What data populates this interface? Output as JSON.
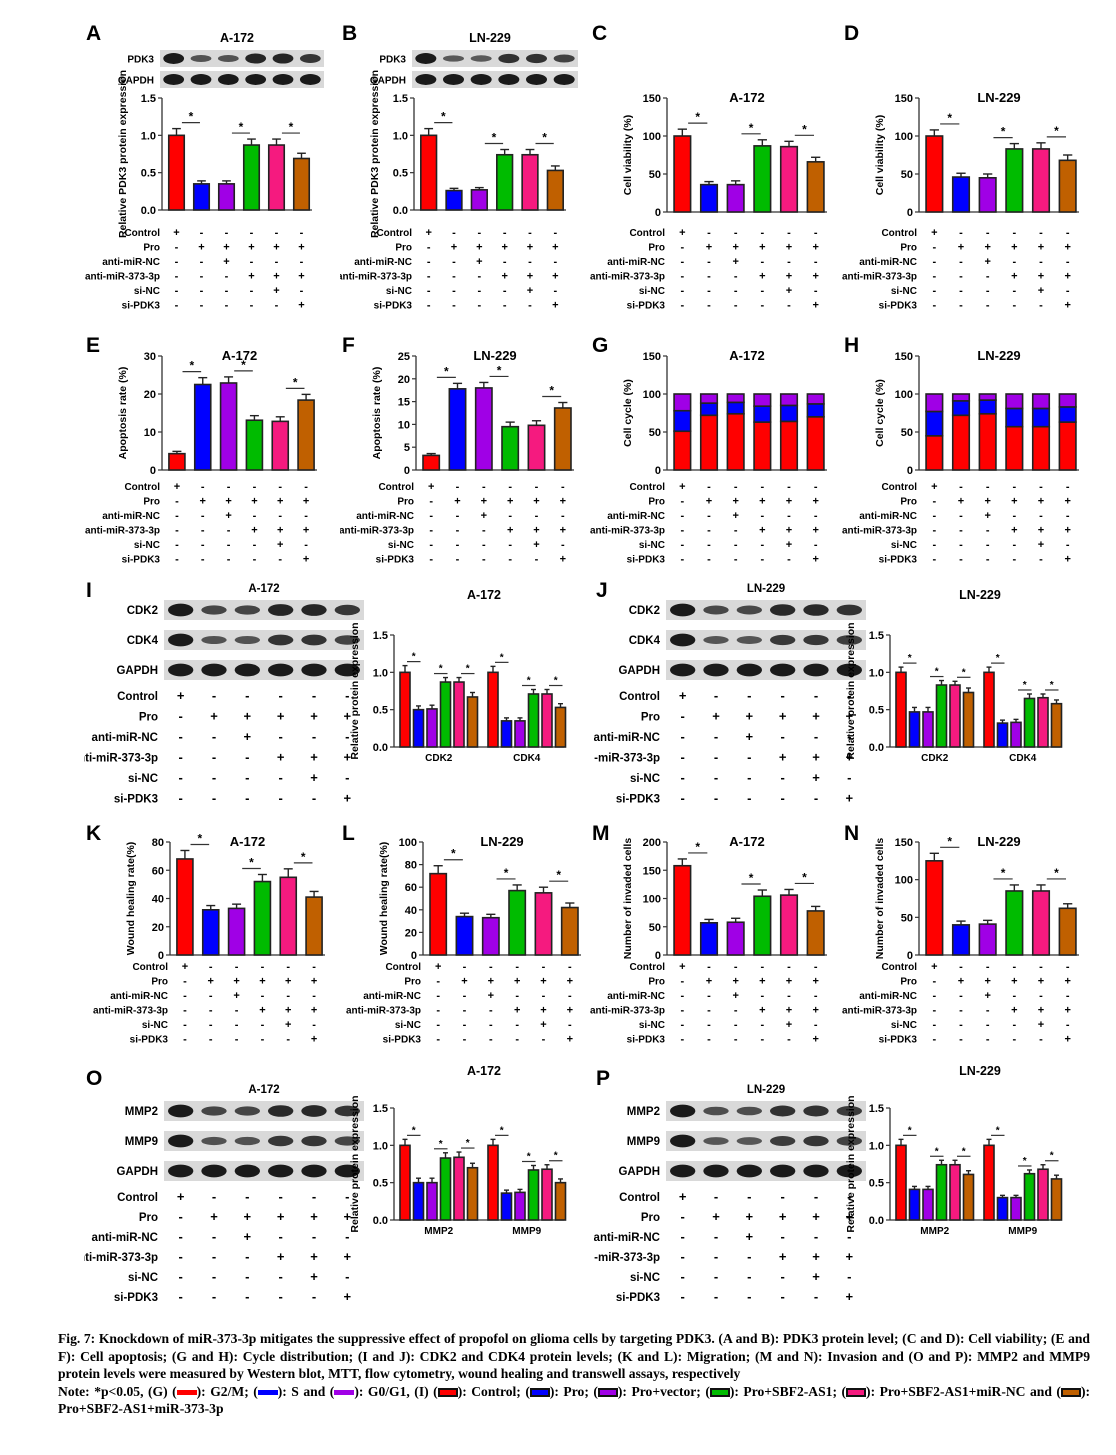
{
  "colors": {
    "control": "#ff0000",
    "pro": "#0000ff",
    "anti_miR_NC": "#a000e6",
    "anti_miR_373": "#00bb00",
    "si_NC": "#f51a7f",
    "si_PDK3": "#c06000",
    "g2m": "#ff0000",
    "s": "#0000ff",
    "g0g1": "#a000e6"
  },
  "conditions": {
    "rows": [
      "Control",
      "Pro",
      "anti-miR-NC",
      "anti-miR-373-3p",
      "si-NC",
      "si-PDK3"
    ],
    "signs": [
      [
        "+",
        "-",
        "-",
        "-",
        "-",
        "-"
      ],
      [
        "-",
        "+",
        "+",
        "+",
        "+",
        "+"
      ],
      [
        "-",
        "-",
        "+",
        "-",
        "-",
        "-"
      ],
      [
        "-",
        "-",
        "-",
        "+",
        "+",
        "+"
      ],
      [
        "-",
        "-",
        "-",
        "-",
        "+",
        "-"
      ],
      [
        "-",
        "-",
        "-",
        "-",
        "-",
        "+"
      ]
    ]
  },
  "chart_data": [
    {
      "panel": "A",
      "type": "bar",
      "title": "A-172",
      "ylabel": "Relative PDK3 protein expression",
      "ylim": [
        0,
        1.5
      ],
      "yticks": [
        "0.0",
        "0.5",
        "1.0",
        "1.5"
      ],
      "tickvals": [
        0,
        0.5,
        1.0,
        1.5
      ],
      "blot": {
        "bands": [
          "PDK3",
          "GAPDH"
        ]
      },
      "values": [
        1.0,
        0.35,
        0.35,
        0.87,
        0.87,
        0.69
      ],
      "errors": [
        0.09,
        0.04,
        0.04,
        0.08,
        0.08,
        0.07
      ],
      "sig": [
        [
          0,
          1
        ],
        [
          2,
          3
        ],
        [
          4,
          5
        ]
      ],
      "sig_label": "*"
    },
    {
      "panel": "B",
      "type": "bar",
      "title": "LN-229",
      "ylabel": "Relative PDK3 protein expression",
      "ylim": [
        0,
        1.5
      ],
      "yticks": [
        "0.0",
        "0.5",
        "1.0",
        "1.5"
      ],
      "tickvals": [
        0,
        0.5,
        1.0,
        1.5
      ],
      "blot": {
        "bands": [
          "PDK3",
          "GAPDH"
        ]
      },
      "values": [
        1.0,
        0.26,
        0.27,
        0.74,
        0.74,
        0.53
      ],
      "errors": [
        0.09,
        0.03,
        0.03,
        0.07,
        0.07,
        0.06
      ],
      "sig": [
        [
          0,
          1
        ],
        [
          2,
          3
        ],
        [
          4,
          5
        ]
      ],
      "sig_label": "*"
    },
    {
      "panel": "C",
      "type": "bar",
      "title": "A-172",
      "ylabel": "Cell viability (%)",
      "ylim": [
        0,
        150
      ],
      "yticks": [
        "0",
        "50",
        "100",
        "150"
      ],
      "tickvals": [
        0,
        50,
        100,
        150
      ],
      "values": [
        100,
        36,
        36,
        87,
        86,
        66
      ],
      "errors": [
        9,
        4,
        5,
        8,
        7,
        6
      ],
      "sig": [
        [
          0,
          1
        ],
        [
          2,
          3
        ],
        [
          4,
          5
        ]
      ],
      "sig_label": "*"
    },
    {
      "panel": "D",
      "type": "bar",
      "title": "LN-229",
      "ylabel": "Cell viability (%)",
      "ylim": [
        0,
        150
      ],
      "yticks": [
        "0",
        "50",
        "100",
        "150"
      ],
      "tickvals": [
        0,
        50,
        100,
        150
      ],
      "values": [
        100,
        46,
        45,
        83,
        83,
        68
      ],
      "errors": [
        8,
        5,
        5,
        7,
        8,
        7
      ],
      "sig": [
        [
          0,
          1
        ],
        [
          2,
          3
        ],
        [
          4,
          5
        ]
      ],
      "sig_label": "*"
    },
    {
      "panel": "E",
      "type": "bar",
      "title": "A-172",
      "ylabel": "Apoptosis rate (%)",
      "ylim": [
        0,
        30
      ],
      "yticks": [
        "0",
        "10",
        "20",
        "30"
      ],
      "tickvals": [
        0,
        10,
        20,
        30
      ],
      "values": [
        4.3,
        22.5,
        22.9,
        13.1,
        12.8,
        18.4
      ],
      "errors": [
        0.6,
        1.8,
        1.6,
        1.2,
        1.2,
        1.5
      ],
      "sig": [
        [
          0,
          1
        ],
        [
          2,
          3
        ],
        [
          4,
          5
        ]
      ],
      "sig_label": "*"
    },
    {
      "panel": "F",
      "type": "bar",
      "title": "LN-229",
      "ylabel": "Apoptosis rate (%)",
      "ylim": [
        0,
        25
      ],
      "yticks": [
        "0",
        "5",
        "10",
        "15",
        "20",
        "25"
      ],
      "tickvals": [
        0,
        5,
        10,
        15,
        20,
        25
      ],
      "values": [
        3.2,
        17.8,
        18.0,
        9.5,
        9.8,
        13.6
      ],
      "errors": [
        0.4,
        1.2,
        1.2,
        1.0,
        1.0,
        1.2
      ],
      "sig": [
        [
          0,
          1
        ],
        [
          2,
          3
        ],
        [
          4,
          5
        ]
      ],
      "sig_label": "*"
    },
    {
      "panel": "G",
      "type": "stacked-bar",
      "title": "A-172",
      "ylabel": "Cell cycle (%)",
      "ylim": [
        0,
        150
      ],
      "yticks": [
        "0",
        "50",
        "100",
        "150"
      ],
      "tickvals": [
        0,
        50,
        100,
        150
      ],
      "series": [
        {
          "name": "G2/M",
          "values": [
            51,
            72,
            74,
            63,
            64,
            70
          ]
        },
        {
          "name": "S",
          "values": [
            27,
            16,
            15,
            21,
            21,
            17
          ]
        },
        {
          "name": "G0/G1",
          "values": [
            22,
            12,
            11,
            16,
            15,
            13
          ]
        }
      ]
    },
    {
      "panel": "H",
      "type": "stacked-bar",
      "title": "LN-229",
      "ylabel": "Cell cycle (%)",
      "ylim": [
        0,
        150
      ],
      "yticks": [
        "0",
        "50",
        "100",
        "150"
      ],
      "tickvals": [
        0,
        50,
        100,
        150
      ],
      "series": [
        {
          "name": "G2/M",
          "values": [
            45,
            72,
            74,
            57,
            57,
            63
          ]
        },
        {
          "name": "S",
          "values": [
            32,
            19,
            18,
            24,
            24,
            20
          ]
        },
        {
          "name": "G0/G1",
          "values": [
            23,
            9,
            8,
            19,
            19,
            17
          ]
        }
      ]
    },
    {
      "panel": "I",
      "type": "grouped-bar",
      "blot_title": "A-172",
      "title": "A-172",
      "ylabel": "Relative protein expression",
      "ylim": [
        0,
        1.5
      ],
      "yticks": [
        "0.0",
        "0.5",
        "1.0",
        "1.5"
      ],
      "tickvals": [
        0,
        0.5,
        1.0,
        1.5
      ],
      "blot": {
        "bands": [
          "CDK2",
          "CDK4",
          "GAPDH"
        ]
      },
      "categories": [
        "CDK2",
        "CDK4"
      ],
      "groups": [
        {
          "values": [
            1.0,
            0.5,
            0.51,
            0.87,
            0.87,
            0.67
          ],
          "errors": [
            0.09,
            0.05,
            0.05,
            0.06,
            0.06,
            0.06
          ]
        },
        {
          "values": [
            1.0,
            0.35,
            0.35,
            0.71,
            0.71,
            0.53
          ],
          "errors": [
            0.08,
            0.04,
            0.04,
            0.06,
            0.06,
            0.05
          ]
        }
      ],
      "sig": [
        [
          0,
          1
        ],
        [
          2,
          3
        ],
        [
          4,
          5
        ]
      ],
      "sig_label": "*"
    },
    {
      "panel": "J",
      "type": "grouped-bar",
      "blot_title": "LN-229",
      "title": "LN-229",
      "ylabel": "Relative protein expression",
      "ylim": [
        0,
        1.5
      ],
      "yticks": [
        "0.0",
        "0.5",
        "1.0",
        "1.5"
      ],
      "tickvals": [
        0,
        0.5,
        1.0,
        1.5
      ],
      "blot": {
        "bands": [
          "CDK2",
          "CDK4",
          "GAPDH"
        ]
      },
      "categories": [
        "CDK2",
        "CDK4"
      ],
      "groups": [
        {
          "values": [
            1.0,
            0.47,
            0.47,
            0.83,
            0.83,
            0.73
          ],
          "errors": [
            0.07,
            0.06,
            0.06,
            0.06,
            0.05,
            0.06
          ]
        },
        {
          "values": [
            1.0,
            0.32,
            0.33,
            0.65,
            0.66,
            0.58
          ],
          "errors": [
            0.07,
            0.04,
            0.04,
            0.06,
            0.05,
            0.05
          ]
        }
      ],
      "sig": [
        [
          0,
          1
        ],
        [
          2,
          3
        ],
        [
          4,
          5
        ]
      ],
      "sig_label": "*"
    },
    {
      "panel": "K",
      "type": "bar",
      "title": "A-172",
      "ylabel": "Wound healing rate(%)",
      "ylim": [
        0,
        80
      ],
      "yticks": [
        "0",
        "20",
        "40",
        "60",
        "80"
      ],
      "tickvals": [
        0,
        20,
        40,
        60,
        80
      ],
      "values": [
        68,
        32,
        33,
        52,
        55,
        41
      ],
      "errors": [
        6,
        3,
        3,
        5,
        6,
        4
      ],
      "sig": [
        [
          0,
          1
        ],
        [
          2,
          3
        ],
        [
          4,
          5
        ]
      ],
      "sig_label": "*"
    },
    {
      "panel": "L",
      "type": "bar",
      "title": "LN-229",
      "ylabel": "Wound healing rate(%)",
      "ylim": [
        0,
        100
      ],
      "yticks": [
        "0",
        "20",
        "40",
        "60",
        "80",
        "100"
      ],
      "tickvals": [
        0,
        20,
        40,
        60,
        80,
        100
      ],
      "values": [
        72,
        34,
        33,
        57,
        55,
        42
      ],
      "errors": [
        7,
        3,
        3,
        5,
        5,
        4
      ],
      "sig": [
        [
          0,
          1
        ],
        [
          2,
          3
        ],
        [
          4,
          5
        ]
      ],
      "sig_label": "*"
    },
    {
      "panel": "M",
      "type": "bar",
      "title": "A-172",
      "ylabel": "Number of invaded cells",
      "ylim": [
        0,
        200
      ],
      "yticks": [
        "0",
        "50",
        "100",
        "150",
        "200"
      ],
      "tickvals": [
        0,
        50,
        100,
        150,
        200
      ],
      "values": [
        158,
        57,
        58,
        104,
        106,
        78
      ],
      "errors": [
        12,
        6,
        7,
        11,
        10,
        8
      ],
      "sig": [
        [
          0,
          1
        ],
        [
          2,
          3
        ],
        [
          4,
          5
        ]
      ],
      "sig_label": "*"
    },
    {
      "panel": "N",
      "type": "bar",
      "title": "LN-229",
      "ylabel": "Number of invaded cells",
      "ylim": [
        0,
        150
      ],
      "yticks": [
        "0",
        "50",
        "100",
        "150"
      ],
      "tickvals": [
        0,
        50,
        100,
        150
      ],
      "values": [
        125,
        40,
        41,
        85,
        85,
        62
      ],
      "errors": [
        10,
        5,
        5,
        8,
        8,
        6
      ],
      "sig": [
        [
          0,
          1
        ],
        [
          2,
          3
        ],
        [
          4,
          5
        ]
      ],
      "sig_label": "*"
    },
    {
      "panel": "O",
      "type": "grouped-bar",
      "blot_title": "A-172",
      "title": "A-172",
      "ylabel": "Relative protein expression",
      "ylim": [
        0,
        1.5
      ],
      "yticks": [
        "0.0",
        "0.5",
        "1.0",
        "1.5"
      ],
      "tickvals": [
        0,
        0.5,
        1.0,
        1.5
      ],
      "blot": {
        "bands": [
          "MMP2",
          "MMP9",
          "GAPDH"
        ]
      },
      "categories": [
        "MMP2",
        "MMP9"
      ],
      "groups": [
        {
          "values": [
            1.0,
            0.5,
            0.5,
            0.83,
            0.84,
            0.7
          ],
          "errors": [
            0.08,
            0.06,
            0.06,
            0.07,
            0.07,
            0.06
          ]
        },
        {
          "values": [
            1.0,
            0.36,
            0.37,
            0.67,
            0.68,
            0.5
          ],
          "errors": [
            0.08,
            0.04,
            0.04,
            0.06,
            0.06,
            0.05
          ]
        }
      ],
      "sig": [
        [
          0,
          1
        ],
        [
          2,
          3
        ],
        [
          4,
          5
        ]
      ],
      "sig_label": "*"
    },
    {
      "panel": "P",
      "type": "grouped-bar",
      "blot_title": "LN-229",
      "title": "LN-229",
      "ylabel": "Relative protein expression",
      "ylim": [
        0,
        1.5
      ],
      "yticks": [
        "0.0",
        "0.5",
        "1.0",
        "1.5"
      ],
      "tickvals": [
        0,
        0.5,
        1.0,
        1.5
      ],
      "blot": {
        "bands": [
          "MMP2",
          "MMP9",
          "GAPDH"
        ]
      },
      "categories": [
        "MMP2",
        "MMP9"
      ],
      "groups": [
        {
          "values": [
            1.0,
            0.41,
            0.41,
            0.74,
            0.74,
            0.61
          ],
          "errors": [
            0.08,
            0.04,
            0.04,
            0.06,
            0.06,
            0.05
          ]
        },
        {
          "values": [
            1.0,
            0.3,
            0.3,
            0.62,
            0.68,
            0.55
          ],
          "errors": [
            0.08,
            0.03,
            0.03,
            0.05,
            0.06,
            0.05
          ]
        }
      ],
      "sig": [
        [
          0,
          1
        ],
        [
          2,
          3
        ],
        [
          4,
          5
        ]
      ],
      "sig_label": "*"
    }
  ],
  "caption": {
    "line1": "Fig. 7: Knockdown of miR-373-3p mitigates the suppressive effect of propofol on glioma cells by targeting PDK3. (A and B): PDK3 protein level; (C and D): Cell viability; (E and F): Cell apoptosis; (G and H): Cycle distribution; (I and J): CDK2 and CDK4 protein levels; (K and L): Migration; (M and N): Invasion and (O and P): MMP2 and MMP9 protein levels were measured by Western blot, MTT, flow cytometry, wound healing and transwell assays, respectively",
    "note_prefix": "Note: *p<0.05, (G) (",
    "note_g2m": "): G2/M; (",
    "note_s": "): S and (",
    "note_g0g1": "): G0/G1, (I) (",
    "note_control": "): Control; (",
    "note_pro": "): Pro; (",
    "note_vector": "): Pro+vector; (",
    "note_sbf2": "): Pro+SBF2-AS1; (",
    "note_mirnc": "): Pro+SBF2-AS1+miR-NC and (",
    "note_mir373": "): Pro+SBF2-AS1+miR-373-3p"
  }
}
